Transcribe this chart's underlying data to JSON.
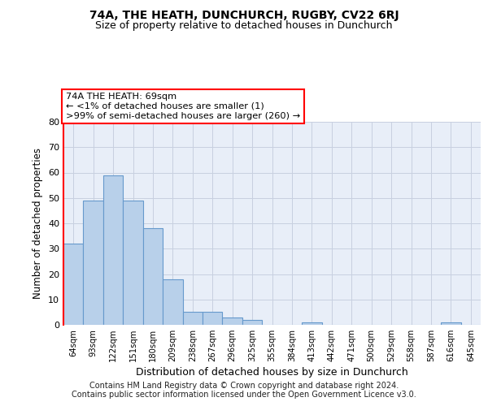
{
  "title1": "74A, THE HEATH, DUNCHURCH, RUGBY, CV22 6RJ",
  "title2": "Size of property relative to detached houses in Dunchurch",
  "xlabel": "Distribution of detached houses by size in Dunchurch",
  "ylabel": "Number of detached properties",
  "categories": [
    "64sqm",
    "93sqm",
    "122sqm",
    "151sqm",
    "180sqm",
    "209sqm",
    "238sqm",
    "267sqm",
    "296sqm",
    "325sqm",
    "355sqm",
    "384sqm",
    "413sqm",
    "442sqm",
    "471sqm",
    "500sqm",
    "529sqm",
    "558sqm",
    "587sqm",
    "616sqm",
    "645sqm"
  ],
  "values": [
    32,
    49,
    59,
    49,
    38,
    18,
    5,
    5,
    3,
    2,
    0,
    0,
    1,
    0,
    0,
    0,
    0,
    0,
    0,
    1,
    0
  ],
  "bar_color": "#b8d0ea",
  "bar_edge_color": "#6699cc",
  "annotation_line1": "74A THE HEATH: 69sqm",
  "annotation_line2": "← <1% of detached houses are smaller (1)",
  "annotation_line3": ">99% of semi-detached houses are larger (260) →",
  "annotation_box_color": "white",
  "annotation_box_edge_color": "red",
  "vline_color": "red",
  "ylim": [
    0,
    80
  ],
  "yticks": [
    0,
    10,
    20,
    30,
    40,
    50,
    60,
    70,
    80
  ],
  "footer1": "Contains HM Land Registry data © Crown copyright and database right 2024.",
  "footer2": "Contains public sector information licensed under the Open Government Licence v3.0.",
  "bg_color": "#e8eef8",
  "grid_color": "#c8d0e0",
  "title1_fontsize": 10,
  "title2_fontsize": 9
}
